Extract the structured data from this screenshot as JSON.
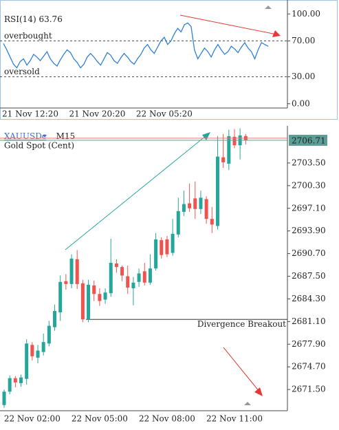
{
  "chart_data": [
    {
      "type": "line",
      "indicator": "RSI(14)",
      "current": 63.76,
      "color": "#2f7fd6",
      "categories": [
        null,
        null,
        null,
        null,
        null,
        null,
        null,
        null,
        "21 Nov 12:20",
        null,
        null,
        null,
        null,
        null,
        null,
        null,
        null,
        null,
        null,
        null,
        null,
        null,
        null,
        null,
        null,
        null,
        null,
        null,
        "21 Nov 20:20",
        null,
        null,
        null,
        null,
        null,
        null,
        null,
        null,
        null,
        null,
        null,
        null,
        null,
        null,
        null,
        null,
        null,
        null,
        null,
        "22 Nov 05:20",
        null,
        null,
        null,
        null,
        null,
        null,
        null,
        null,
        null,
        null,
        null,
        null,
        null,
        null,
        null,
        null,
        null,
        null,
        null,
        null,
        null,
        null,
        null,
        null,
        null,
        null,
        null,
        null,
        null,
        null,
        null
      ],
      "values": [
        67,
        60,
        52,
        44,
        40,
        47,
        50,
        43,
        48,
        55,
        52,
        48,
        53,
        58,
        50,
        45,
        42,
        49,
        55,
        60,
        57,
        50,
        46,
        40,
        44,
        52,
        56,
        52,
        47,
        43,
        50,
        57,
        54,
        48,
        45,
        51,
        56,
        52,
        47,
        44,
        50,
        55,
        62,
        66,
        60,
        56,
        63,
        70,
        74,
        66,
        70,
        78,
        84,
        80,
        88,
        90,
        86,
        60,
        50,
        56,
        62,
        58,
        52,
        60,
        66,
        60,
        55,
        58,
        64,
        61,
        57,
        63,
        68,
        62,
        58,
        50,
        60,
        68,
        66,
        64
      ],
      "levels": [
        {
          "value": 70,
          "label": "overbought"
        },
        {
          "value": 30,
          "label": "oversold"
        }
      ],
      "ylim": [
        -4,
        114
      ],
      "yticks": [
        {
          "value": 100,
          "label": "100.00"
        },
        {
          "value": 70,
          "label": "70.00"
        },
        {
          "value": 30,
          "label": "30.00"
        },
        {
          "value": 0,
          "label": "0.00"
        }
      ]
    },
    {
      "type": "candlestick",
      "symbol": "XAUUSDc",
      "timeframe": "M15",
      "description": "Gold Spot (Cent)",
      "up_color": "#26a69a",
      "down_color": "#ef5350",
      "last_price": 2706.71,
      "categories": [
        null,
        null,
        null,
        null,
        null,
        "22 Nov 02:00",
        null,
        null,
        null,
        null,
        null,
        null,
        null,
        null,
        null,
        null,
        null,
        "22 Nov 05:00",
        null,
        null,
        null,
        null,
        null,
        null,
        null,
        null,
        null,
        null,
        null,
        "22 Nov 08:00",
        null,
        null,
        null,
        null,
        null,
        null,
        null,
        null,
        null,
        null,
        null,
        "22 Nov 11:00",
        null,
        null
      ],
      "open": [
        2669.3,
        2671.2,
        2673.1,
        2672.4,
        2673.0,
        2677.8,
        2676.0,
        2676.8,
        2678.0,
        2680.3,
        2682.4,
        2686.8,
        2686.4,
        2689.9,
        2686.5,
        2681.4,
        2686.2,
        2685.0,
        2684.2,
        2685.1,
        2689.3,
        2688.8,
        2687.5,
        2685.8,
        2686.7,
        2688.2,
        2686.6,
        2688.6,
        2692.6,
        2692.7,
        2690.8,
        2693.4,
        2696.6,
        2697.8,
        2698.5,
        2697.0,
        2698.4,
        2695.6,
        2694.6,
        2704.3,
        2703.4,
        2707.2,
        2706.0,
        2707.3
      ],
      "high": [
        2671.5,
        2673.5,
        2673.4,
        2673.6,
        2678.6,
        2678.2,
        2677.8,
        2679.4,
        2681.2,
        2683.5,
        2687.6,
        2687.8,
        2690.6,
        2691.2,
        2687.0,
        2687.0,
        2686.9,
        2685.8,
        2685.8,
        2692.8,
        2689.9,
        2689.0,
        2689.0,
        2687.4,
        2688.6,
        2689.4,
        2690.6,
        2693.6,
        2693.0,
        2693.2,
        2695.6,
        2698.6,
        2699.6,
        2700.6,
        2700.9,
        2699.6,
        2698.8,
        2697.3,
        2707.3,
        2707.6,
        2708.2,
        2708.3,
        2708.4,
        2707.6
      ],
      "low": [
        2668.9,
        2670.8,
        2671.8,
        2671.9,
        2672.2,
        2675.6,
        2675.2,
        2676.3,
        2677.6,
        2679.8,
        2681.2,
        2685.6,
        2685.8,
        2685.7,
        2681.0,
        2681.0,
        2684.0,
        2683.3,
        2683.6,
        2684.6,
        2688.0,
        2686.8,
        2685.0,
        2683.4,
        2686.0,
        2686.2,
        2686.3,
        2688.3,
        2690.0,
        2690.2,
        2690.4,
        2693.0,
        2696.0,
        2696.6,
        2695.6,
        2696.3,
        2694.9,
        2693.6,
        2694.1,
        2702.8,
        2702.5,
        2705.6,
        2704.0,
        2706.1
      ],
      "close": [
        2671.2,
        2673.1,
        2672.5,
        2673.2,
        2678.0,
        2676.2,
        2677.0,
        2678.2,
        2680.5,
        2682.6,
        2686.7,
        2686.4,
        2690.0,
        2686.4,
        2681.4,
        2686.3,
        2685.0,
        2684.0,
        2685.2,
        2689.4,
        2688.8,
        2687.6,
        2685.9,
        2686.6,
        2687.9,
        2686.6,
        2688.6,
        2692.7,
        2690.5,
        2690.6,
        2693.5,
        2696.7,
        2697.7,
        2697.1,
        2697.0,
        2698.6,
        2695.6,
        2694.8,
        2704.4,
        2703.6,
        2707.3,
        2706.0,
        2707.4,
        2706.71
      ],
      "annotation": {
        "text": "Divergence Breakout",
        "level": 2681.4
      },
      "ylim": [
        2668.5,
        2708.74
      ],
      "yticks": [
        {
          "value": 2703.5,
          "label": "2703.50"
        },
        {
          "value": 2700.3,
          "label": "2700.30"
        },
        {
          "value": 2697.1,
          "label": "2697.10"
        },
        {
          "value": 2693.9,
          "label": "2693.90"
        },
        {
          "value": 2690.7,
          "label": "2690.70"
        },
        {
          "value": 2687.5,
          "label": "2687.50"
        },
        {
          "value": 2684.3,
          "label": "2684.30"
        },
        {
          "value": 2681.1,
          "label": "2681.10"
        },
        {
          "value": 2677.9,
          "label": "2677.90"
        },
        {
          "value": 2674.7,
          "label": "2674.70"
        },
        {
          "value": 2671.5,
          "label": "2671.50"
        }
      ]
    }
  ]
}
